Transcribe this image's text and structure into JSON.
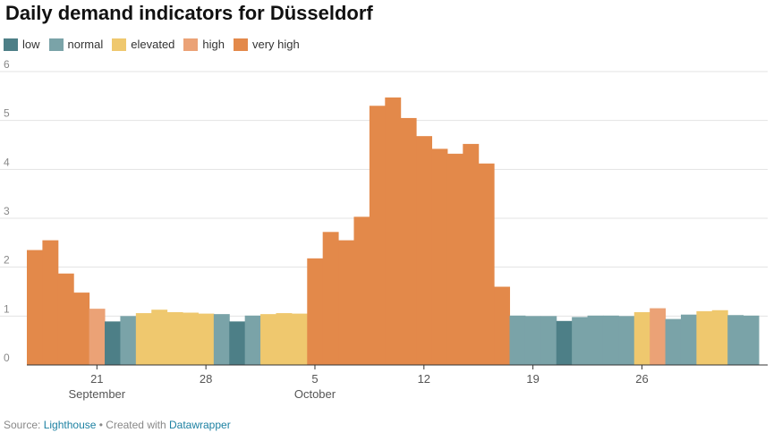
{
  "chart_data": {
    "type": "bar",
    "title": "Daily demand indicators for Düsseldorf",
    "legend": [
      {
        "key": "low",
        "label": "low",
        "color": "#4d7f87"
      },
      {
        "key": "normal",
        "label": "normal",
        "color": "#7aa3a8"
      },
      {
        "key": "elevated",
        "label": "elevated",
        "color": "#efc86e"
      },
      {
        "key": "high",
        "label": "high",
        "color": "#eba276"
      },
      {
        "key": "very_high",
        "label": "very high",
        "color": "#e3894a"
      }
    ],
    "ylim": [
      0,
      6
    ],
    "yticks": [
      "0",
      "1",
      "2",
      "3",
      "4",
      "5",
      "6"
    ],
    "grid": true,
    "legend_position": "top-left",
    "x_ticks": [
      {
        "index": 4,
        "label": "21",
        "sublabel": "September"
      },
      {
        "index": 11,
        "label": "28",
        "sublabel": ""
      },
      {
        "index": 18,
        "label": "5",
        "sublabel": "October"
      },
      {
        "index": 25,
        "label": "12",
        "sublabel": ""
      },
      {
        "index": 32,
        "label": "19",
        "sublabel": ""
      },
      {
        "index": 39,
        "label": "26",
        "sublabel": ""
      }
    ],
    "values": [
      2.35,
      2.55,
      1.87,
      1.48,
      1.15,
      0.89,
      1.0,
      1.06,
      1.13,
      1.08,
      1.07,
      1.05,
      1.04,
      0.89,
      1.01,
      1.04,
      1.06,
      1.05,
      2.18,
      2.72,
      2.55,
      3.03,
      5.3,
      5.47,
      5.05,
      4.68,
      4.42,
      4.32,
      4.52,
      4.12,
      1.6,
      1.01,
      1.0,
      1.0,
      0.9,
      0.98,
      1.01,
      1.01,
      1.0,
      1.08,
      1.16,
      0.94,
      1.03,
      1.1,
      1.12,
      1.02,
      1.01
    ],
    "categories_level": [
      "very_high",
      "very_high",
      "very_high",
      "very_high",
      "high",
      "low",
      "normal",
      "elevated",
      "elevated",
      "elevated",
      "elevated",
      "elevated",
      "normal",
      "low",
      "normal",
      "elevated",
      "elevated",
      "elevated",
      "very_high",
      "very_high",
      "very_high",
      "very_high",
      "very_high",
      "very_high",
      "very_high",
      "very_high",
      "very_high",
      "very_high",
      "very_high",
      "very_high",
      "very_high",
      "normal",
      "normal",
      "normal",
      "low",
      "normal",
      "normal",
      "normal",
      "normal",
      "elevated",
      "high",
      "normal",
      "normal",
      "elevated",
      "elevated",
      "normal",
      "normal"
    ]
  },
  "footer": {
    "source_prefix": "Source: ",
    "source_link": "Lighthouse",
    "separator": " • Created with ",
    "tool_link": "Datawrapper"
  }
}
